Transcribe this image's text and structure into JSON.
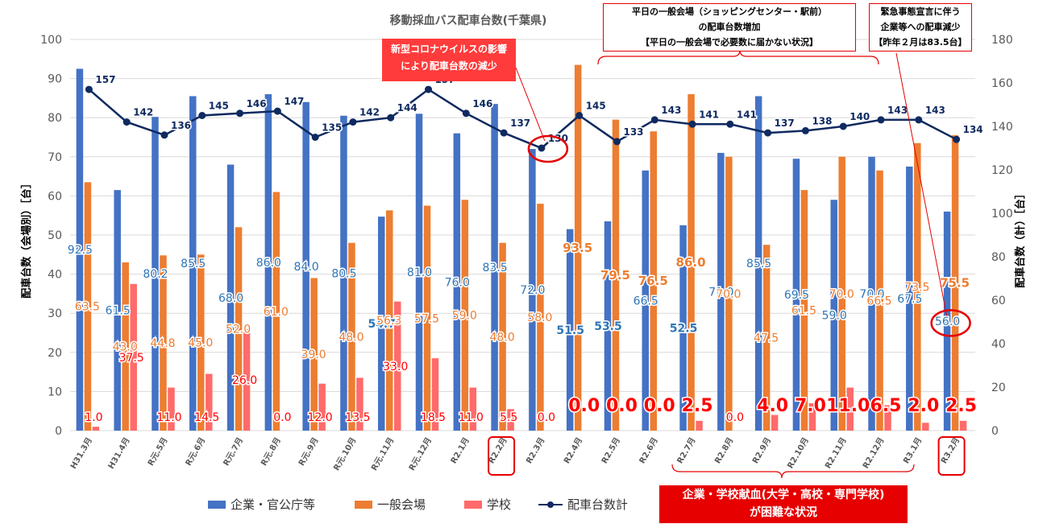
{
  "chart_data": {
    "type": "bar",
    "title": "移動採血バス配車台数(千葉県)",
    "ylabel": "配車台数（会場別）［台］",
    "y2label": "配車台数（計）［台］",
    "ylim": [
      0,
      100
    ],
    "y2lim": [
      0,
      180
    ],
    "yticks": [
      "0",
      "10",
      "20",
      "30",
      "40",
      "50",
      "60",
      "70",
      "80",
      "90",
      "100"
    ],
    "y2ticks": [
      "0",
      "20",
      "40",
      "60",
      "80",
      "100",
      "120",
      "140",
      "160",
      "180"
    ],
    "categories": [
      "H31.3月",
      "H31.4月",
      "R元.5月",
      "R元.6月",
      "R元.7月",
      "R元.8月",
      "R元.9月",
      "R元.10月",
      "R元.11月",
      "R元.12月",
      "R2.1月",
      "R2.2月",
      "R2.3月",
      "R2.4月",
      "R2.5月",
      "R2.6月",
      "R2.7月",
      "R2.8月",
      "R2.9月",
      "R2.10月",
      "R2.11月",
      "R2.12月",
      "R3.1月",
      "R3.2月"
    ],
    "series": [
      {
        "name": "企業・官公庁等",
        "color": "#4472c4",
        "label_color": "#2e75b6",
        "values": [
          92.5,
          61.5,
          80.2,
          85.5,
          68.0,
          86.0,
          84.0,
          80.5,
          54.7,
          81.0,
          76.0,
          83.5,
          72.0,
          51.5,
          53.5,
          66.5,
          52.5,
          71.0,
          85.5,
          69.5,
          59.0,
          70.0,
          67.5,
          56.0
        ],
        "labels": [
          "92.5",
          "61.5",
          "80.2",
          "85.5",
          "68.0",
          "86.0",
          "84.0",
          "80.5",
          "54.7",
          "81.0",
          "76.0",
          "83.5",
          "72.0",
          "51.5",
          "53.5",
          "66.5",
          "52.5",
          "71.0",
          "85.5",
          "69.5",
          "59.0",
          "70.0",
          "67.5",
          "56.0"
        ]
      },
      {
        "name": "一般会場",
        "color": "#ed7d31",
        "label_color": "#ed7d31",
        "values": [
          63.5,
          43.0,
          44.8,
          45.0,
          52.0,
          61.0,
          39.0,
          48.0,
          56.3,
          57.5,
          59.0,
          48.0,
          58.0,
          93.5,
          79.5,
          76.5,
          86.0,
          70.0,
          47.5,
          61.5,
          70.0,
          66.5,
          73.5,
          75.5
        ],
        "labels": [
          "63.5",
          "43.0",
          "44.8",
          "45.0",
          "52.0",
          "61.0",
          "39.0",
          "48.0",
          "56.3",
          "57.5",
          "59.0",
          "48.0",
          "58.0",
          "93.5",
          "79.5",
          "76.5",
          "86.0",
          "70.0",
          "47.5",
          "61.5",
          "70.0",
          "66.5",
          "73.5",
          "75.5"
        ]
      },
      {
        "name": "学校",
        "color": "#ff6b6b",
        "label_color": "#ff0000",
        "values": [
          1.0,
          37.5,
          11.0,
          14.5,
          26.0,
          0.0,
          12.0,
          13.5,
          33.0,
          18.5,
          11.0,
          5.5,
          0.0,
          0.0,
          0.0,
          0.0,
          2.5,
          0.0,
          4.0,
          7.0,
          11.0,
          6.5,
          2.0,
          2.5
        ],
        "labels": [
          "1.0",
          "37.5",
          "11.0",
          "14.5",
          "26.0",
          "0.0",
          "12.0",
          "13.5",
          "33.0",
          "18.5",
          "11.0",
          "5.5",
          "0.0",
          "0.0",
          "0.0",
          "0.0",
          "2.5",
          "0.0",
          "4.0",
          "7.0",
          "11.0",
          "6.5",
          "2.0",
          "2.5"
        ]
      },
      {
        "name": "配車台数計",
        "type": "line",
        "color": "#0f2a60",
        "axis": "right",
        "values": [
          157,
          142,
          136,
          145,
          146,
          147,
          135,
          142,
          144,
          157,
          146,
          137,
          130,
          145,
          133,
          143,
          141,
          141,
          137,
          138,
          140,
          143,
          143,
          134
        ],
        "labels": [
          "157",
          "142",
          "136",
          "145",
          "146",
          "147",
          "135",
          "142",
          "144",
          "157",
          "146",
          "137",
          "130",
          "145",
          "133",
          "143",
          "141",
          "141",
          "137",
          "138",
          "140",
          "143",
          "143",
          "134"
        ]
      }
    ]
  },
  "callouts": {
    "corona": [
      "新型コロナウイルスの影響",
      "により配車台数の減少"
    ],
    "weekday": [
      "平日の一般会場（ショッピングセンター・駅前）",
      "の配車台数増加",
      "【平日の一般会場で必要数に届かない状況】"
    ],
    "emergency": [
      "緊急事態宣言に伴う",
      "企業等への配車減少",
      "【昨年２月は83.5台】"
    ],
    "school": [
      "企業・学校献血(大学・高校・専門学校)",
      "が困難な状況"
    ]
  }
}
